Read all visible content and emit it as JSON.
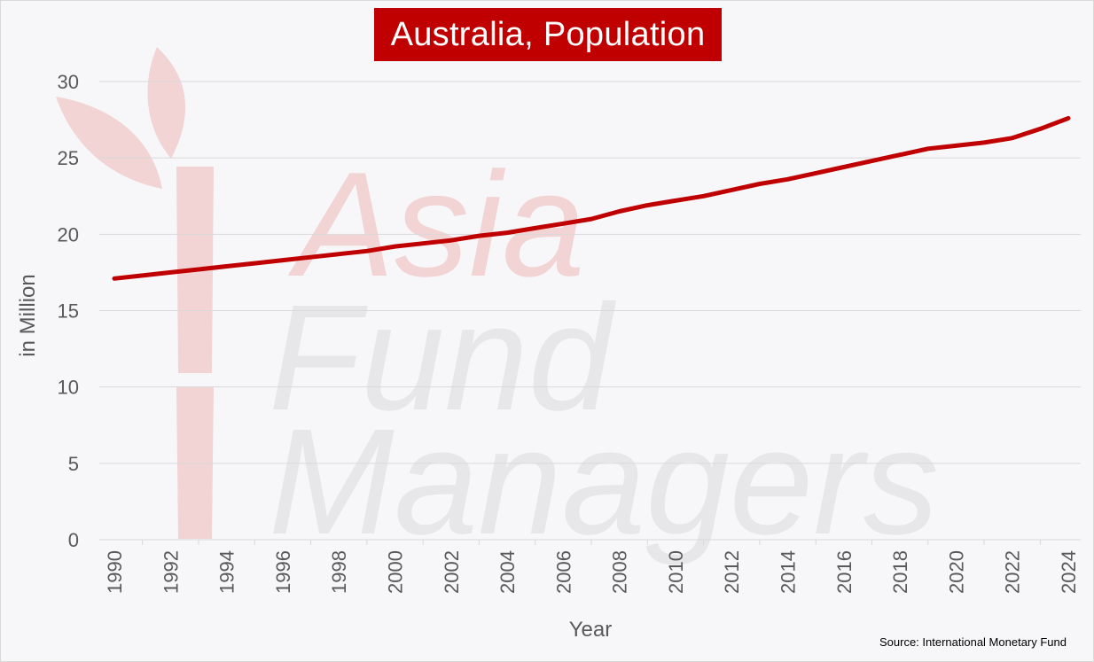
{
  "chart_data": {
    "type": "line",
    "title": "Australia, Population",
    "xlabel": "Year",
    "ylabel": "in Million",
    "source": "Source: International Monetary Fund",
    "watermark": [
      "Asia",
      "Fund",
      "Managers"
    ],
    "x": [
      1990,
      1991,
      1992,
      1993,
      1994,
      1995,
      1996,
      1997,
      1998,
      1999,
      2000,
      2001,
      2002,
      2003,
      2004,
      2005,
      2006,
      2007,
      2008,
      2009,
      2010,
      2011,
      2012,
      2013,
      2014,
      2015,
      2016,
      2017,
      2018,
      2019,
      2020,
      2021,
      2022,
      2023,
      2024
    ],
    "x_tick_labels": [
      "1990",
      "1992",
      "1994",
      "1996",
      "1998",
      "2000",
      "2002",
      "2004",
      "2006",
      "2008",
      "2010",
      "2012",
      "2014",
      "2016",
      "2018",
      "2020",
      "2022",
      "2024"
    ],
    "y_ticks": [
      0,
      5,
      10,
      15,
      20,
      25,
      30
    ],
    "ylim": [
      0,
      30
    ],
    "grid": true,
    "series": [
      {
        "values": [
          17.1,
          17.3,
          17.5,
          17.7,
          17.9,
          18.1,
          18.3,
          18.5,
          18.7,
          18.9,
          19.2,
          19.4,
          19.6,
          19.9,
          20.1,
          20.4,
          20.7,
          21.0,
          21.5,
          21.9,
          22.2,
          22.5,
          22.9,
          23.3,
          23.6,
          24.0,
          24.4,
          24.8,
          25.2,
          25.6,
          25.8,
          26.0,
          26.3,
          26.9,
          27.6
        ],
        "color": "#c00000"
      }
    ]
  },
  "colors": {
    "line": "#c00000",
    "title_bg": "#c00000",
    "grid": "#d9d9d9",
    "axis_text": "#595959"
  }
}
